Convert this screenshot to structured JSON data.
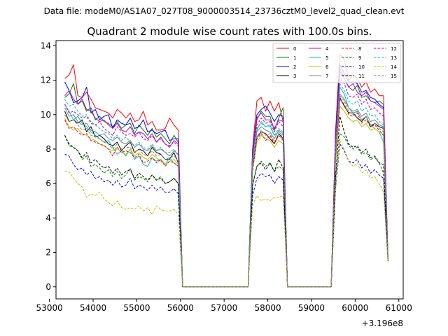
{
  "file_label": "Data file: modeM0/AS1A07_027T08_9000003514_23736cztM0_level2_quad_clean.evt",
  "chart_data": {
    "type": "line",
    "title": "Quadrant 2 module wise count rates with 100.0s bins.",
    "xlabel": "",
    "ylabel": "",
    "x_offset_label": "+3.196e8",
    "xlim": [
      53150,
      61100
    ],
    "ylim": [
      -0.7,
      14.3
    ],
    "xticks": [
      53000,
      54000,
      55000,
      56000,
      57000,
      58000,
      59000,
      60000,
      61000
    ],
    "yticks": [
      0,
      2,
      4,
      6,
      8,
      10,
      12,
      14
    ],
    "legend_position": "top-right",
    "x_points": [
      53350,
      53450,
      53550,
      53650,
      53750,
      53850,
      53950,
      54050,
      54150,
      54250,
      54350,
      54450,
      54550,
      54650,
      54750,
      54850,
      54950,
      55050,
      55150,
      55250,
      55350,
      55450,
      55550,
      55650,
      55750,
      55850,
      55950,
      56050,
      57550,
      57650,
      57750,
      57850,
      57950,
      58050,
      58150,
      58250,
      58350,
      58450,
      59450,
      59550,
      59650,
      59750,
      59850,
      59950,
      60050,
      60150,
      60250,
      60350,
      60450,
      60550,
      60650,
      60750
    ],
    "series": [
      {
        "name": "0",
        "color": "#ff0000",
        "dash": "solid",
        "values": [
          12.1,
          12.3,
          12.9,
          11.1,
          11.0,
          11.3,
          10.9,
          10.4,
          10.3,
          10.2,
          10.1,
          9.8,
          10.3,
          10.1,
          9.8,
          10.1,
          9.6,
          9.7,
          10.2,
          9.4,
          9.6,
          9.1,
          9.1,
          9.2,
          9.8,
          9.4,
          9.1,
          0.0,
          0.0,
          8.0,
          10.8,
          11.0,
          10.2,
          10.8,
          10.2,
          10.7,
          9.6,
          0.0,
          0.0,
          9.0,
          13.5,
          13.2,
          12.0,
          12.3,
          12.1,
          11.6,
          11.9,
          11.3,
          11.5,
          11.1,
          11.1,
          1.8
        ]
      },
      {
        "name": "1",
        "color": "#008000",
        "dash": "solid",
        "values": [
          11.0,
          11.2,
          11.8,
          10.6,
          10.8,
          10.2,
          10.4,
          9.7,
          9.9,
          9.6,
          9.5,
          9.3,
          9.6,
          9.2,
          9.4,
          9.5,
          8.9,
          9.4,
          9.1,
          8.8,
          9.2,
          8.7,
          8.9,
          8.6,
          8.3,
          8.8,
          8.4,
          0.0,
          0.0,
          7.6,
          9.7,
          10.2,
          9.9,
          9.9,
          9.1,
          9.8,
          10.4,
          0.0,
          0.0,
          8.4,
          12.7,
          12.1,
          11.6,
          11.4,
          11.7,
          11.0,
          11.1,
          10.8,
          10.7,
          10.8,
          10.6,
          1.6
        ]
      },
      {
        "name": "2",
        "color": "#0000ff",
        "dash": "solid",
        "values": [
          11.9,
          11.4,
          10.7,
          10.8,
          11.0,
          11.6,
          10.1,
          10.3,
          9.7,
          9.9,
          10.0,
          9.2,
          9.7,
          9.5,
          9.4,
          9.8,
          9.2,
          9.3,
          9.7,
          9.0,
          9.1,
          8.9,
          9.0,
          9.1,
          8.5,
          8.6,
          8.6,
          0.0,
          0.0,
          7.9,
          10.0,
          10.3,
          10.5,
          10.1,
          9.6,
          10.0,
          9.9,
          0.0,
          0.0,
          8.8,
          12.9,
          12.4,
          11.9,
          11.9,
          11.8,
          11.3,
          11.4,
          11.0,
          10.9,
          10.6,
          10.4,
          1.7
        ]
      },
      {
        "name": "3",
        "color": "#000000",
        "dash": "solid",
        "values": [
          10.2,
          9.6,
          9.7,
          9.5,
          9.7,
          9.0,
          9.3,
          8.7,
          8.8,
          8.6,
          8.3,
          8.2,
          8.4,
          7.9,
          8.2,
          8.4,
          7.8,
          8.0,
          7.9,
          7.6,
          8.1,
          7.8,
          7.7,
          7.4,
          7.4,
          7.8,
          7.2,
          0.0,
          0.0,
          6.9,
          8.7,
          9.0,
          8.9,
          8.6,
          8.3,
          8.9,
          8.6,
          0.0,
          0.0,
          7.4,
          11.0,
          10.5,
          10.1,
          10.1,
          9.8,
          9.6,
          9.9,
          9.3,
          9.5,
          9.3,
          9.2,
          1.5
        ]
      },
      {
        "name": "4",
        "color": "#bf00bf",
        "dash": "solid",
        "values": [
          11.1,
          11.4,
          10.9,
          10.6,
          10.9,
          10.3,
          10.2,
          9.8,
          9.6,
          9.7,
          9.4,
          9.2,
          9.5,
          9.1,
          9.0,
          9.3,
          8.8,
          9.0,
          8.9,
          8.6,
          8.9,
          8.4,
          8.7,
          8.3,
          8.1,
          8.5,
          8.3,
          0.0,
          0.0,
          7.8,
          9.8,
          10.1,
          9.7,
          9.7,
          9.2,
          9.7,
          9.6,
          0.0,
          0.0,
          8.6,
          12.5,
          12.1,
          11.6,
          11.8,
          11.3,
          11.1,
          11.3,
          10.8,
          10.7,
          10.5,
          10.3,
          1.7
        ]
      },
      {
        "name": "5",
        "color": "#00bfbf",
        "dash": "solid",
        "values": [
          10.6,
          10.2,
          9.7,
          9.9,
          9.5,
          9.3,
          9.0,
          8.8,
          8.6,
          8.4,
          8.5,
          8.1,
          7.7,
          7.9,
          7.6,
          8.0,
          7.4,
          7.6,
          7.1,
          7.0,
          7.5,
          7.3,
          7.4,
          7.1,
          7.5,
          7.2,
          7.0,
          0.0,
          0.0,
          7.2,
          9.1,
          9.6,
          9.3,
          9.4,
          8.8,
          9.0,
          8.8,
          0.0,
          0.0,
          7.9,
          11.6,
          11.2,
          10.4,
          10.1,
          10.2,
          9.7,
          9.9,
          9.4,
          9.2,
          9.0,
          8.4,
          1.6
        ]
      },
      {
        "name": "6",
        "color": "#bfbf00",
        "dash": "solid",
        "values": [
          9.8,
          9.3,
          9.1,
          9.2,
          8.9,
          8.8,
          8.6,
          8.5,
          8.3,
          8.2,
          8.0,
          7.9,
          8.1,
          7.8,
          7.7,
          8.0,
          7.6,
          7.8,
          7.5,
          7.4,
          7.7,
          7.5,
          7.3,
          7.1,
          7.3,
          7.4,
          7.1,
          0.0,
          0.0,
          6.8,
          8.4,
          8.8,
          8.6,
          8.5,
          8.1,
          8.5,
          8.3,
          0.0,
          0.0,
          7.2,
          10.5,
          10.2,
          9.8,
          9.6,
          9.7,
          9.3,
          9.5,
          9.1,
          9.2,
          9.0,
          8.8,
          1.5
        ]
      },
      {
        "name": "7",
        "color": "#808080",
        "dash": "solid",
        "values": [
          10.4,
          9.9,
          10.0,
          9.6,
          9.4,
          9.5,
          9.1,
          9.0,
          8.8,
          8.9,
          8.6,
          8.5,
          8.7,
          8.4,
          8.3,
          8.5,
          8.1,
          8.3,
          8.0,
          7.9,
          8.2,
          7.9,
          8.0,
          7.8,
          7.6,
          7.9,
          7.7,
          0.0,
          0.0,
          7.3,
          9.0,
          9.3,
          9.1,
          9.0,
          8.6,
          9.1,
          8.9,
          0.0,
          0.0,
          7.7,
          11.2,
          10.9,
          10.4,
          10.2,
          10.3,
          9.9,
          10.1,
          9.6,
          9.7,
          9.4,
          9.3,
          1.6
        ]
      },
      {
        "name": "8",
        "color": "#ff0000",
        "dash": "dash",
        "values": [
          9.7,
          9.2,
          9.3,
          9.0,
          8.8,
          8.9,
          8.5,
          8.4,
          8.3,
          8.2,
          8.0,
          7.6,
          8.1,
          7.8,
          7.9,
          7.8,
          7.5,
          7.7,
          7.2,
          7.3,
          7.5,
          7.2,
          7.4,
          7.0,
          7.3,
          7.2,
          7.0,
          0.0,
          0.0,
          6.7,
          8.6,
          8.9,
          8.5,
          8.8,
          8.3,
          8.8,
          8.5,
          0.0,
          0.0,
          7.5,
          10.9,
          10.6,
          10.0,
          9.9,
          10.1,
          9.5,
          9.7,
          9.3,
          9.4,
          9.1,
          8.8,
          1.6
        ]
      },
      {
        "name": "9",
        "color": "#008000",
        "dash": "dash",
        "values": [
          8.8,
          8.2,
          8.1,
          7.9,
          7.4,
          7.6,
          7.0,
          7.1,
          6.9,
          6.6,
          6.8,
          6.4,
          6.7,
          6.3,
          6.5,
          6.9,
          6.2,
          6.4,
          6.3,
          6.1,
          6.5,
          6.2,
          6.4,
          6.0,
          6.1,
          6.3,
          6.0,
          0.0,
          0.0,
          5.9,
          7.0,
          7.3,
          7.0,
          7.2,
          6.7,
          7.0,
          6.8,
          0.0,
          0.0,
          6.2,
          8.9,
          8.7,
          8.2,
          8.0,
          8.1,
          7.7,
          7.8,
          7.4,
          7.5,
          7.2,
          6.6,
          1.5
        ]
      },
      {
        "name": "10",
        "color": "#0000ff",
        "dash": "dash",
        "values": [
          7.7,
          7.6,
          7.1,
          6.8,
          6.9,
          6.5,
          6.7,
          6.3,
          6.4,
          6.1,
          6.2,
          5.9,
          6.2,
          5.8,
          5.9,
          6.3,
          5.7,
          5.9,
          5.8,
          5.6,
          5.9,
          5.6,
          5.8,
          5.5,
          5.5,
          5.7,
          5.4,
          0.0,
          0.0,
          5.3,
          6.3,
          6.6,
          6.4,
          6.5,
          6.0,
          6.4,
          6.2,
          0.0,
          0.0,
          5.6,
          8.3,
          7.9,
          7.3,
          7.2,
          7.4,
          6.9,
          7.1,
          6.6,
          6.8,
          6.5,
          6.3,
          1.5
        ]
      },
      {
        "name": "11",
        "color": "#000000",
        "dash": "dash",
        "values": [
          8.8,
          8.3,
          8.1,
          7.9,
          7.5,
          7.8,
          7.2,
          7.4,
          7.1,
          6.9,
          7.0,
          6.6,
          6.9,
          6.5,
          6.7,
          6.8,
          6.3,
          6.6,
          6.4,
          6.2,
          6.5,
          6.2,
          6.3,
          6.0,
          6.1,
          6.3,
          6.0,
          0.0,
          0.0,
          5.9,
          7.0,
          7.2,
          6.8,
          7.2,
          6.7,
          7.4,
          6.9,
          0.0,
          0.0,
          6.3,
          9.9,
          9.0,
          8.3,
          8.1,
          8.2,
          7.8,
          8.0,
          7.5,
          7.6,
          7.2,
          7.1,
          1.5
        ]
      },
      {
        "name": "12",
        "color": "#bf00bf",
        "dash": "dash",
        "values": [
          10.6,
          10.1,
          10.2,
          10.0,
          9.8,
          9.9,
          9.5,
          9.4,
          9.6,
          9.2,
          9.0,
          8.8,
          9.3,
          9.0,
          8.8,
          8.9,
          8.7,
          9.0,
          8.6,
          8.5,
          8.8,
          8.4,
          8.6,
          8.3,
          8.2,
          8.4,
          8.2,
          0.0,
          0.0,
          7.6,
          9.4,
          9.8,
          9.5,
          9.6,
          9.0,
          9.6,
          9.3,
          0.0,
          0.0,
          8.2,
          12.2,
          11.8,
          11.1,
          11.0,
          11.2,
          10.6,
          10.9,
          10.3,
          10.4,
          10.1,
          9.9,
          1.7
        ]
      },
      {
        "name": "13",
        "color": "#00bfbf",
        "dash": "dash",
        "values": [
          10.9,
          10.5,
          10.6,
          10.2,
          9.9,
          10.0,
          9.6,
          9.4,
          9.2,
          9.0,
          8.9,
          8.6,
          8.8,
          8.5,
          8.7,
          8.4,
          8.2,
          8.4,
          8.1,
          8.0,
          8.3,
          7.9,
          8.1,
          7.8,
          7.8,
          8.0,
          7.6,
          0.0,
          0.0,
          7.4,
          9.2,
          9.5,
          9.3,
          9.3,
          8.8,
          9.2,
          9.0,
          0.0,
          0.0,
          8.0,
          11.8,
          11.4,
          10.8,
          10.6,
          10.8,
          10.2,
          10.4,
          9.9,
          10.0,
          9.6,
          9.4,
          1.6
        ]
      },
      {
        "name": "14",
        "color": "#bfbf00",
        "dash": "dash",
        "values": [
          6.7,
          6.7,
          6.3,
          6.0,
          5.8,
          5.2,
          5.4,
          5.3,
          5.5,
          5.1,
          4.9,
          4.7,
          5.0,
          4.6,
          4.5,
          4.6,
          4.5,
          4.7,
          4.4,
          4.6,
          4.2,
          4.7,
          4.5,
          4.4,
          4.4,
          4.5,
          4.2,
          0.0,
          0.0,
          4.7,
          5.3,
          5.0,
          5.1,
          5.0,
          5.2,
          5.2,
          5.3,
          0.0,
          0.0,
          5.6,
          8.5,
          8.0,
          7.3,
          7.0,
          7.2,
          6.6,
          6.8,
          6.3,
          6.4,
          6.0,
          5.5,
          1.4
        ]
      },
      {
        "name": "15",
        "color": "#808080",
        "dash": "dash",
        "values": [
          10.0,
          9.6,
          9.7,
          9.4,
          9.1,
          9.2,
          8.8,
          8.7,
          8.6,
          8.4,
          8.3,
          8.0,
          8.3,
          8.0,
          8.1,
          8.1,
          7.8,
          8.0,
          7.7,
          7.6,
          7.9,
          7.6,
          7.7,
          7.4,
          7.5,
          7.6,
          7.3,
          0.0,
          0.0,
          7.0,
          8.7,
          9.1,
          8.8,
          8.9,
          8.4,
          8.9,
          8.7,
          0.0,
          0.0,
          7.6,
          11.1,
          10.8,
          10.2,
          10.0,
          10.2,
          9.7,
          9.9,
          9.4,
          9.5,
          9.2,
          9.0,
          1.6
        ]
      }
    ]
  }
}
